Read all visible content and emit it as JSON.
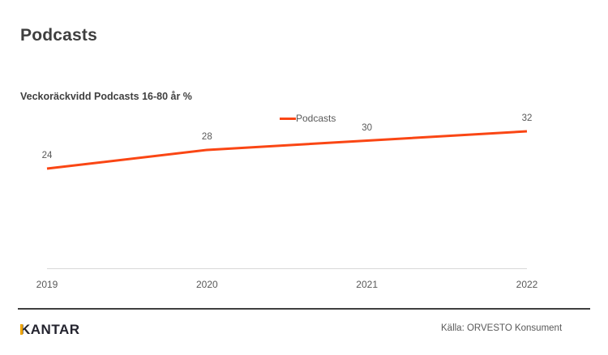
{
  "header": {
    "title": "Podcasts"
  },
  "chart": {
    "subtitle": "Veckoräckvidd Podcasts 16-80 år %",
    "legend_label": "Podcasts",
    "line_color": "#fa4614",
    "axis_color": "#d9d9d9"
  },
  "chart_data": {
    "type": "line",
    "title": "Veckoräckvidd Podcasts 16-80 år %",
    "categories": [
      "2019",
      "2020",
      "2021",
      "2022"
    ],
    "series": [
      {
        "name": "Podcasts",
        "values": [
          24,
          28,
          30,
          32
        ]
      }
    ],
    "xlabel": "",
    "ylabel": "",
    "data_labels": [
      24,
      28,
      30,
      32
    ],
    "legend_position": "top-center",
    "grid": false
  },
  "footer": {
    "brand": "KANTAR",
    "brand_accent_color": "#f0a500",
    "source": "Källa: ORVESTO Konsument"
  }
}
